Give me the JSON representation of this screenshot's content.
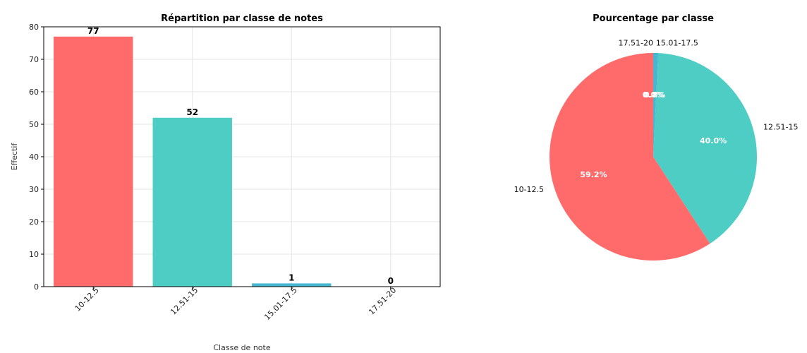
{
  "chart_data": [
    {
      "type": "bar",
      "title": "Répartition par classe de notes",
      "xlabel": "Classe de note",
      "ylabel": "Effectif",
      "categories": [
        "10-12.5",
        "12.51-15",
        "15.01-17.5",
        "17.51-20"
      ],
      "values": [
        77,
        52,
        1,
        0
      ],
      "data_labels": [
        "77",
        "52",
        "1",
        "0"
      ],
      "ylim": [
        0,
        80
      ],
      "yticks": [
        0,
        10,
        20,
        30,
        40,
        50,
        60,
        70,
        80
      ],
      "ytick_labels": [
        "0",
        "10",
        "20",
        "30",
        "40",
        "50",
        "60",
        "70",
        "80"
      ],
      "colors": [
        "#ff6b6b",
        "#4ecdc4",
        "#45b7d1",
        "#96ceb4"
      ],
      "grid": true,
      "xtick_rotation": 45
    },
    {
      "type": "pie",
      "title": "Pourcentage par classe",
      "categories": [
        "10-12.5",
        "12.51-15",
        "15.01-17.5",
        "17.51-20"
      ],
      "values": [
        77,
        52,
        1,
        0
      ],
      "pct_labels": [
        "59.2%",
        "40.0%",
        "0.8%",
        "0.0%"
      ],
      "colors": [
        "#ff6b6b",
        "#4ecdc4",
        "#45b7d1",
        "#96ceb4"
      ],
      "startangle": 90,
      "counterclock": true
    }
  ]
}
